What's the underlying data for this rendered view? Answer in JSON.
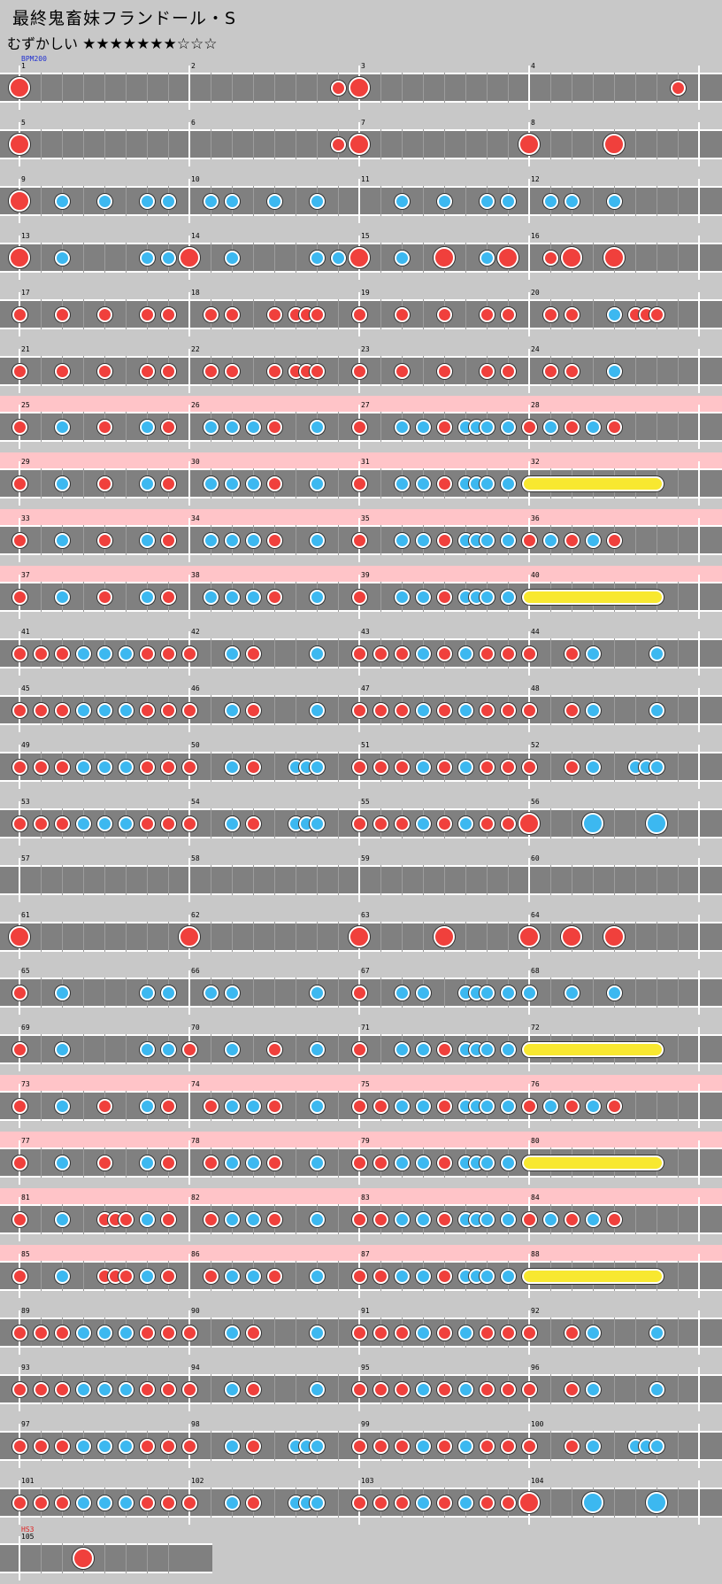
{
  "header": {
    "title": "最終鬼畜妹フランドール・S",
    "difficulty_label": "むずかしい",
    "stars_filled": "★★★★★★★",
    "stars_empty": "☆☆☆",
    "star_level": 7
  },
  "markers": {
    "bpm": "BPM200",
    "hs": "HS3"
  },
  "colors": {
    "background": "#c8c8c8",
    "lane": "#808080",
    "don": "#f0403c",
    "ka": "#3cb8f0",
    "roll": "#f8e830",
    "gogo_band": "#ffc4c8"
  },
  "rows": [
    {
      "pink": false,
      "measures": [
        "1",
        "2",
        "3",
        "4"
      ],
      "notes": "B0 r15 B16 r31",
      "bpm": true
    },
    {
      "pink": false,
      "measures": [
        "5",
        "6",
        "7",
        "8"
      ],
      "notes": "B0 r15 B16 B24 B28"
    },
    {
      "pink": false,
      "measures": [
        "9",
        "10",
        "11",
        "12"
      ],
      "notes": "B0 k2 k4 k6 k7 k9 k10 k12 k14 k18 k20 k22 k23 k25 k26 k28"
    },
    {
      "pink": false,
      "measures": [
        "13",
        "14",
        "15",
        "16"
      ],
      "notes": "B0 k2 k6 k7 B8 k10 k14 k15 B16 k18 B20 k22 B23 r25 B26 B28"
    },
    {
      "pink": false,
      "measures": [
        "17",
        "18",
        "19",
        "20"
      ],
      "notes": "r0 r2 r4 r6 r7 r9 r10 r12 r13 r13.5 r14 r16 r18 r20 r22 r23 r25 r26 k28 r29 r29.5 r30"
    },
    {
      "pink": false,
      "measures": [
        "21",
        "22",
        "23",
        "24"
      ],
      "notes": "r0 r2 r4 r6 r7 r9 r10 r12 r13 r13.5 r14 r16 r18 r20 r22 r23 r25 r26 k28"
    },
    {
      "pink": true,
      "measures": [
        "25",
        "26",
        "27",
        "28"
      ],
      "notes": "r0 k2 r4 k6 r7 k9 k10 k11 r12 k14 r16 k18 k19 r20 k21 k21.5 k22 k23 r24 k25 r26 k27 r28"
    },
    {
      "pink": true,
      "measures": [
        "29",
        "30",
        "31",
        "32"
      ],
      "notes": "r0 k2 r4 k6 r7 k9 k10 k11 r12 k14 r16 k18 k19 r20 k21 k21.5 k22 k23",
      "roll": [
        24,
        30
      ]
    },
    {
      "pink": true,
      "measures": [
        "33",
        "34",
        "35",
        "36"
      ],
      "notes": "r0 k2 r4 k6 r7 k9 k10 k11 r12 k14 r16 k18 k19 r20 k21 k21.5 k22 k23 r24 k25 r26 k27 r28"
    },
    {
      "pink": true,
      "measures": [
        "37",
        "38",
        "39",
        "40"
      ],
      "notes": "r0 k2 r4 k6 r7 k9 k10 k11 r12 k14 r16 k18 k19 r20 k21 k21.5 k22 k23",
      "roll": [
        24,
        30
      ]
    },
    {
      "pink": false,
      "measures": [
        "41",
        "42",
        "43",
        "44"
      ],
      "notes": "r0 r1 r2 k3 k4 k5 r6 r7 r8 k10 r11 k14 r16 r17 r18 k19 r20 k21 r22 r23 r24 r26 k27 k30"
    },
    {
      "pink": false,
      "measures": [
        "45",
        "46",
        "47",
        "48"
      ],
      "notes": "r0 r1 r2 k3 k4 k5 r6 r7 r8 k10 r11 k14 r16 r17 r18 k19 r20 k21 r22 r23 r24 r26 k27 k30"
    },
    {
      "pink": false,
      "measures": [
        "49",
        "50",
        "51",
        "52"
      ],
      "notes": "r0 r1 r2 k3 k4 k5 r6 r7 r8 k10 r11 k13 k13.5 k14 r16 r17 r18 k19 r20 k21 r22 r23 r24 r26 k27 k29 k29.5 k30"
    },
    {
      "pink": false,
      "measures": [
        "53",
        "54",
        "55",
        "56"
      ],
      "notes": "r0 r1 r2 k3 k4 k5 r6 r7 r8 k10 r11 k13 k13.5 k14 r16 r17 r18 k19 r20 k21 r22 r23 B24 K27 K30"
    },
    {
      "pink": false,
      "measures": [
        "57",
        "58",
        "59",
        "60"
      ],
      "notes": ""
    },
    {
      "pink": false,
      "measures": [
        "61",
        "62",
        "63",
        "64"
      ],
      "notes": "B0 B8 B16 B20 B24 B26 B28"
    },
    {
      "pink": false,
      "measures": [
        "65",
        "66",
        "67",
        "68"
      ],
      "notes": "r0 k2 k6 k7 k9 k10 k14 r16 k18 k19 k21 k21.5 k22 k23 k24 k26 k28"
    },
    {
      "pink": false,
      "measures": [
        "69",
        "70",
        "71",
        "72"
      ],
      "notes": "r0 k2 k6 k7 r8 k10 r12 k14 r16 k18 k19 r20 k21 k21.5 k22 k23",
      "roll": [
        24,
        30
      ]
    },
    {
      "pink": true,
      "measures": [
        "73",
        "74",
        "75",
        "76"
      ],
      "notes": "r0 k2 r4 k6 r7 r9 k10 k11 r12 k14 r16 r17 k18 k19 r20 k21 k21.5 k22 k23 r24 k25 r26 k27 r28"
    },
    {
      "pink": true,
      "measures": [
        "77",
        "78",
        "79",
        "80"
      ],
      "notes": "r0 k2 r4 k6 r7 r9 k10 k11 r12 k14 r16 r17 k18 k19 r20 k21 k21.5 k22 k23",
      "roll": [
        24,
        30
      ]
    },
    {
      "pink": true,
      "measures": [
        "81",
        "82",
        "83",
        "84"
      ],
      "notes": "r0 k2 r4 r4.5 r5 k6 r7 r9 k10 k11 r12 k14 r16 r17 k18 k19 r20 k21 k21.5 k22 k23 r24 k25 r26 k27 r28"
    },
    {
      "pink": true,
      "measures": [
        "85",
        "86",
        "87",
        "88"
      ],
      "notes": "r0 k2 r4 r4.5 r5 k6 r7 r9 k10 k11 r12 k14 r16 r17 k18 k19 r20 k21 k21.5 k22 k23",
      "roll": [
        24,
        30
      ]
    },
    {
      "pink": false,
      "measures": [
        "89",
        "90",
        "91",
        "92"
      ],
      "notes": "r0 r1 r2 k3 k4 k5 r6 r7 r8 k10 r11 k14 r16 r17 r18 k19 r20 k21 r22 r23 r24 r26 k27 k30"
    },
    {
      "pink": false,
      "measures": [
        "93",
        "94",
        "95",
        "96"
      ],
      "notes": "r0 r1 r2 k3 k4 k5 r6 r7 r8 k10 r11 k14 r16 r17 r18 k19 r20 k21 r22 r23 r24 r26 k27 k30"
    },
    {
      "pink": false,
      "measures": [
        "97",
        "98",
        "99",
        "100"
      ],
      "notes": "r0 r1 r2 k3 k4 k5 r6 r7 r8 k10 r11 k13 k13.5 k14 r16 r17 r18 k19 r20 k21 r22 r23 r24 r26 k27 k29 k29.5 k30"
    },
    {
      "pink": false,
      "measures": [
        "101",
        "102",
        "103",
        "104"
      ],
      "notes": "r0 r1 r2 k3 k4 k5 r6 r7 r8 k10 r11 k13 k13.5 k14 r16 r17 r18 k19 r20 k21 r22 r23 B24 K27 K30"
    },
    {
      "pink": false,
      "measures": [
        "105"
      ],
      "notes": "B3",
      "hs": true,
      "short": true
    }
  ]
}
